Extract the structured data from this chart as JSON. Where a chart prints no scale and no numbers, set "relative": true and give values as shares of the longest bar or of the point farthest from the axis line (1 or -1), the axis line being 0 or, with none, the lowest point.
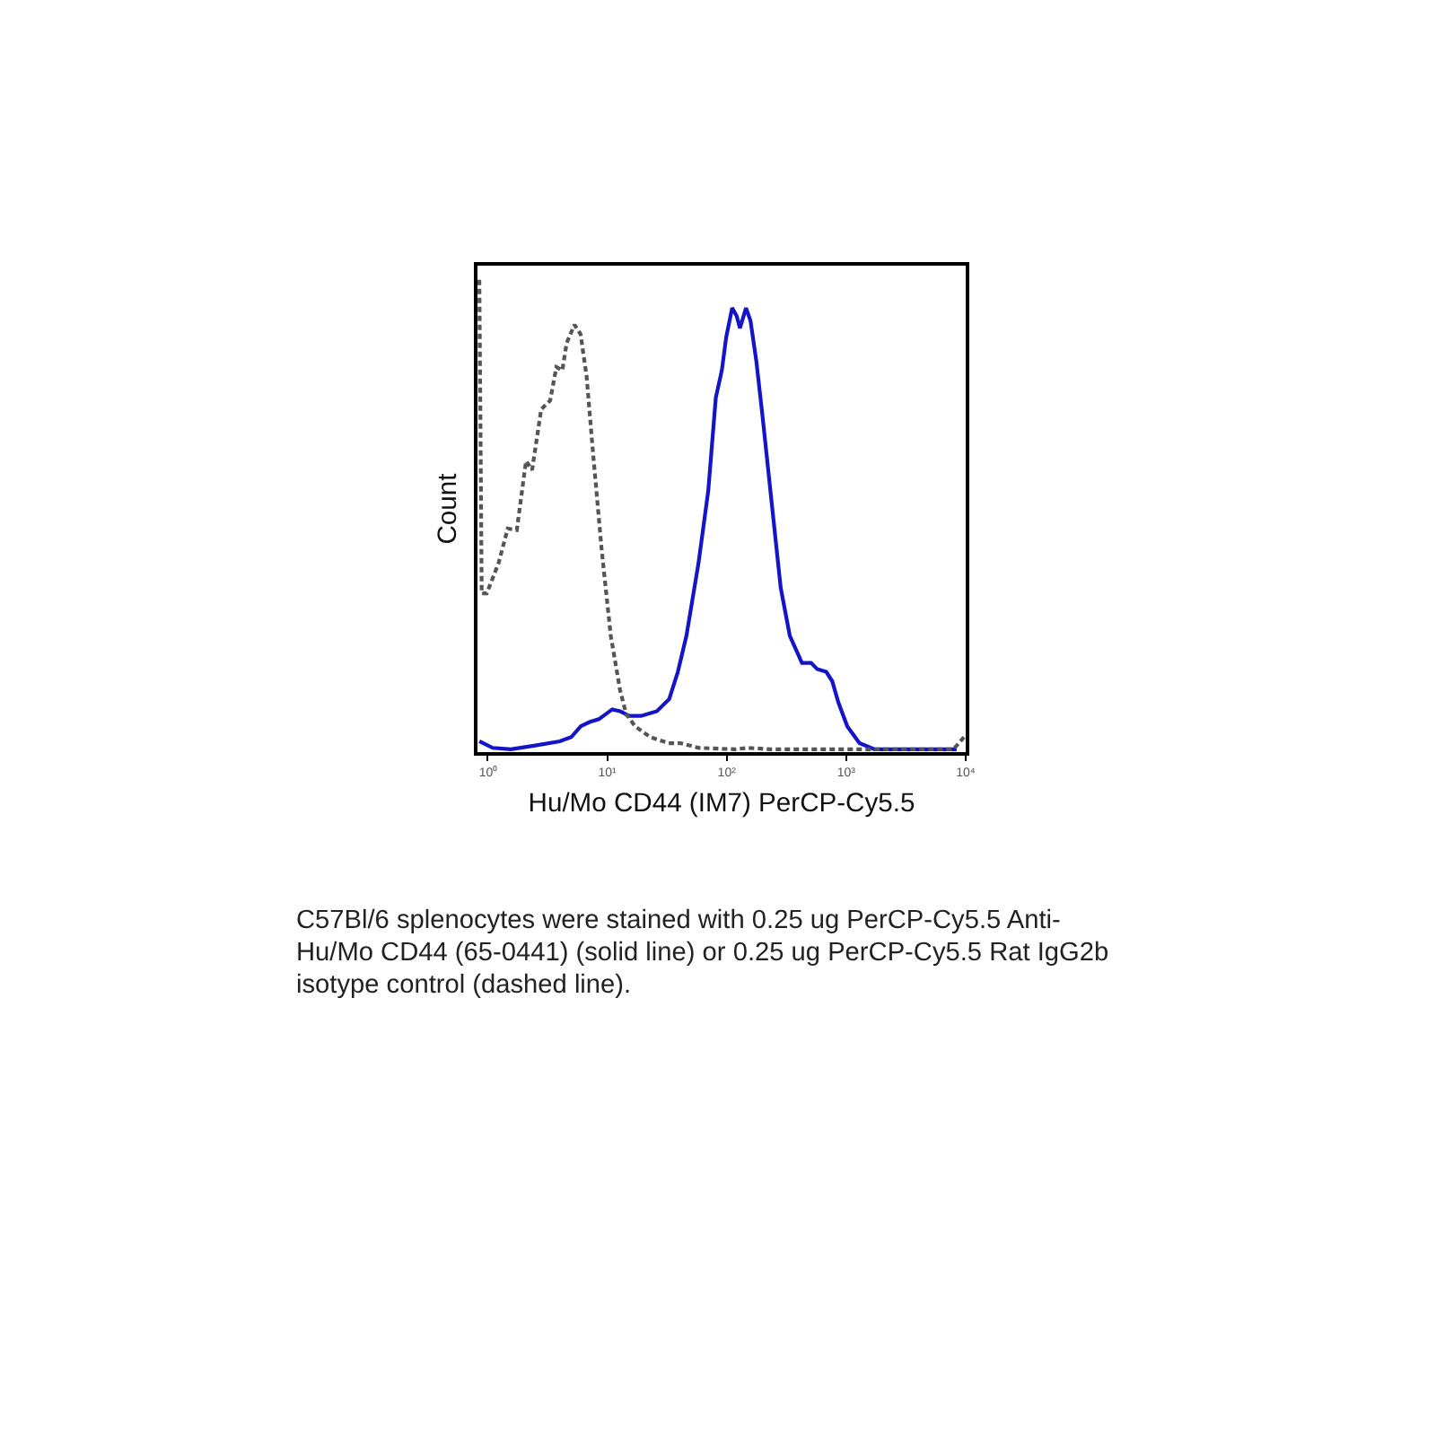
{
  "chart_data": {
    "type": "line",
    "xlabel": "Hu/Mo CD44 (IM7) PerCP-Cy5.5",
    "ylabel": "Count",
    "relative": true,
    "log": "x",
    "xlim": [
      0.82,
      10000
    ],
    "xticks": [
      {
        "value": 1,
        "label": "10⁰"
      },
      {
        "value": 10,
        "label": "10¹"
      },
      {
        "value": 100,
        "label": "10²"
      },
      {
        "value": 1000,
        "label": "10³"
      },
      {
        "value": 10000,
        "label": "10⁴"
      }
    ],
    "annotations": [
      "C57Bl/6 splenocytes were stained with 0.25 ug PerCP-Cy5.5 Anti-Hu/Mo CD44 (65-0441) (solid line) or 0.25 ug PerCP-Cy5.5 Rat IgG2b isotype control (dashed line)."
    ],
    "series": [
      {
        "color": "#1414c8",
        "line_style": "solid",
        "x": [
          0.85,
          1.1,
          1.56,
          2.5,
          4.0,
          5.0,
          6.0,
          7.1,
          8.5,
          11,
          12.8,
          15.2,
          19.2,
          26,
          33,
          39,
          46,
          58,
          70,
          81,
          91,
          99,
          111,
          121,
          129,
          145,
          158,
          177,
          199,
          238,
          283,
          337,
          426,
          508,
          571,
          680,
          764,
          859,
          1020,
          1290,
          1730,
          8400
        ],
        "values": [
          0.017,
          0.003,
          0,
          0.008,
          0.017,
          0.026,
          0.049,
          0.058,
          0.064,
          0.085,
          0.081,
          0.071,
          0.071,
          0.081,
          0.107,
          0.165,
          0.242,
          0.396,
          0.55,
          0.749,
          0.807,
          0.878,
          0.94,
          0.923,
          0.897,
          0.94,
          0.913,
          0.826,
          0.711,
          0.524,
          0.344,
          0.242,
          0.184,
          0.184,
          0.171,
          0.165,
          0.145,
          0.1,
          0.049,
          0.013,
          0,
          0
        ]
      },
      {
        "color": "#555555",
        "line_style": "dashed",
        "x": [
          0.85,
          0.89,
          0.98,
          1.23,
          1.47,
          1.75,
          2.09,
          2.35,
          2.8,
          3.33,
          3.75,
          4.21,
          4.57,
          5.32,
          5.98,
          6.72,
          7.55,
          9.0,
          10.7,
          12.8,
          14.4,
          17.1,
          22.9,
          32.6,
          41.1,
          58.4,
          118,
          149,
          238,
          7900,
          10000
        ],
        "values": [
          1.0,
          0.332,
          0.332,
          0.396,
          0.47,
          0.467,
          0.614,
          0.595,
          0.724,
          0.743,
          0.814,
          0.807,
          0.865,
          0.904,
          0.884,
          0.794,
          0.64,
          0.422,
          0.242,
          0.126,
          0.075,
          0.049,
          0.026,
          0.013,
          0.013,
          0.003,
          0,
          0.003,
          0,
          0,
          0.03
        ]
      }
    ]
  }
}
